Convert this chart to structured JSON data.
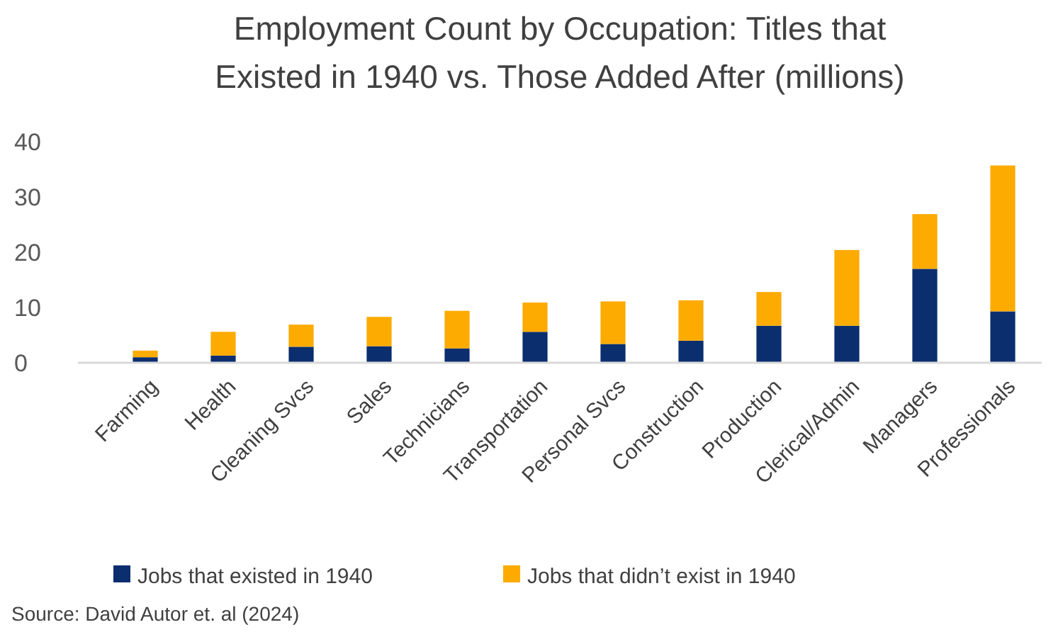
{
  "chart_data": {
    "type": "bar",
    "title": "Employment Count by Occupation: Titles that Existed in 1940 vs. Those Added After (millions)",
    "categories": [
      "Farming",
      "Health",
      "Cleaning Svcs",
      "Sales",
      "Technicians",
      "Transportation",
      "Personal Svcs",
      "Construction",
      "Production",
      "Clerical/Admin",
      "Managers",
      "Professionals"
    ],
    "series": [
      {
        "name": "Jobs that existed in 1940",
        "color": "#0b2e6e",
        "values": [
          1.0,
          1.3,
          2.9,
          3.0,
          2.6,
          5.6,
          3.4,
          4.0,
          6.7,
          6.7,
          17.0,
          9.3
        ]
      },
      {
        "name": "Jobs that didn’t exist in 1940",
        "color": "#fdab00",
        "values": [
          1.2,
          4.3,
          4.0,
          5.3,
          6.8,
          5.3,
          7.7,
          7.3,
          6.1,
          13.7,
          9.9,
          26.4
        ]
      }
    ],
    "stacked": true,
    "ylim": [
      0,
      40
    ],
    "yticks": [
      0,
      10,
      20,
      30,
      40
    ],
    "grid": false,
    "legend": "bottom",
    "annotations": [
      "Source: David Autor et. al (2024)"
    ]
  }
}
